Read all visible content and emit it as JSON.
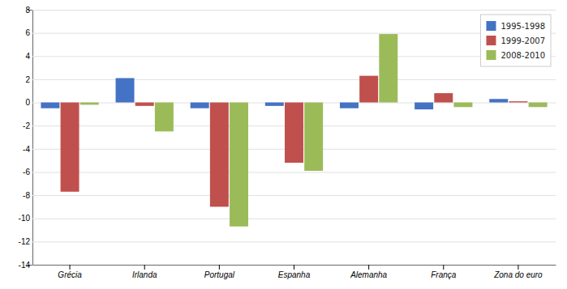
{
  "chart_data": {
    "type": "bar",
    "categories": [
      "Grécia",
      "Irlanda",
      "Portugal",
      "Espanha",
      "Alemanha",
      "França",
      "Zona do euro"
    ],
    "series": [
      {
        "name": "1995-1998",
        "color": "#4472C4",
        "values": [
          -0.5,
          2.1,
          -0.5,
          -0.3,
          -0.5,
          -0.6,
          0.3
        ]
      },
      {
        "name": "1999-2007",
        "color": "#C0504D",
        "values": [
          -7.7,
          -0.3,
          -9.0,
          -5.2,
          2.3,
          0.8,
          0.1
        ]
      },
      {
        "name": "2008-2010",
        "color": "#9BBB59",
        "values": [
          -0.2,
          -2.5,
          -10.7,
          -5.9,
          5.9,
          -0.4,
          -0.4
        ]
      }
    ],
    "ylim": [
      -14,
      8
    ],
    "yticks": [
      -14,
      -12,
      -10,
      -8,
      -6,
      -4,
      -2,
      0,
      2,
      4,
      6,
      8
    ],
    "grid": true,
    "legend": "upper right"
  }
}
